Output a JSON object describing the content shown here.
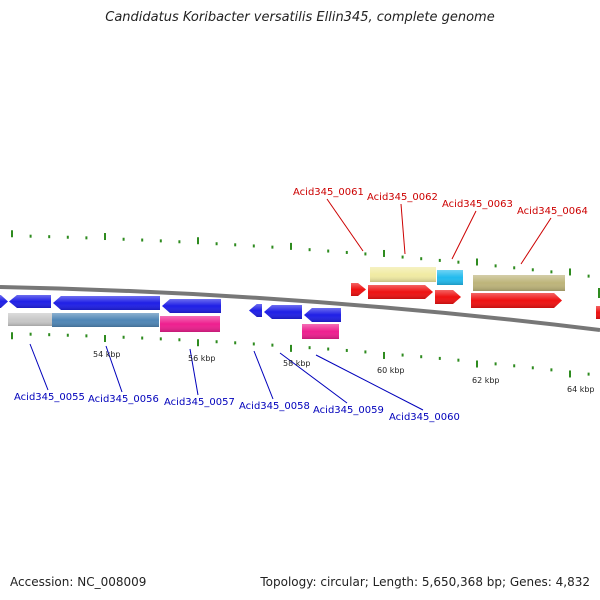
{
  "title": "Candidatus Koribacter versatilis Ellin345, complete genome",
  "footer": {
    "accession": "Accession: NC_008009",
    "summary": "Topology: circular; Length: 5,650,368 bp; Genes: 4,832"
  },
  "colors": {
    "backbone": "#777777",
    "tick": "#2e8b1f",
    "forward_label": "#cc0000",
    "reverse_label": "#0000bb",
    "gene_blue": "#1f1fe6",
    "gene_red": "#ee1111",
    "grey_band": "#c8c8c8",
    "steel_band": "#4f86b6",
    "magenta_band": "#ee1f8f",
    "yellow_band": "#f1eba3",
    "cyan_band": "#22bbee",
    "khaki_band": "#bdb47a"
  },
  "scale_labels": [
    "54 kbp",
    "56 kbp",
    "58 kbp",
    "60 kbp",
    "62 kbp",
    "64 kbp"
  ],
  "forward_genes": [
    "Acid345_0061",
    "Acid345_0062",
    "Acid345_0063",
    "Acid345_0064"
  ],
  "reverse_genes": [
    "Acid345_0055",
    "Acid345_0056",
    "Acid345_0057",
    "Acid345_0058",
    "Acid345_0059",
    "Acid345_0060"
  ]
}
